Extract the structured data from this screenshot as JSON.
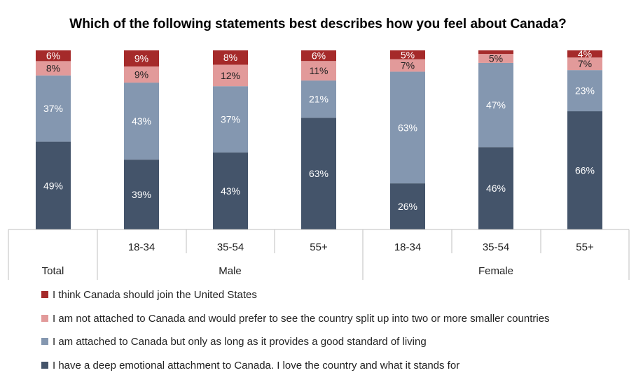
{
  "chart_data": {
    "type": "bar",
    "stacked": true,
    "title": "Which of the following statements best describes how you feel about Canada?",
    "categories": [
      "",
      "18-34",
      "35-54",
      "55+",
      "18-34",
      "35-54",
      "55+"
    ],
    "groups": [
      {
        "label": "Total",
        "span": [
          0,
          0
        ]
      },
      {
        "label": "Male",
        "span": [
          1,
          3
        ]
      },
      {
        "label": "Female",
        "span": [
          4,
          6
        ]
      }
    ],
    "series": [
      {
        "name": "I have a deep emotional attachment to Canada. I love the country and what it stands for",
        "color": "#44546a",
        "label_color": "#ffffff",
        "values": [
          49,
          39,
          43,
          63,
          26,
          46,
          66
        ]
      },
      {
        "name": "I am attached to Canada but only as long as it provides a good standard of living",
        "color": "#8497b0",
        "label_color": "#ffffff",
        "values": [
          37,
          43,
          37,
          21,
          63,
          47,
          23
        ]
      },
      {
        "name": "I am not attached to Canada and would prefer to see the country split up into two or more smaller countries",
        "color": "#e29a9a",
        "label_color": "#222222",
        "values": [
          8,
          9,
          12,
          11,
          7,
          5,
          7
        ]
      },
      {
        "name": "I think Canada should join the United States",
        "color": "#a52a2a",
        "label_color": "#ffffff",
        "values": [
          6,
          9,
          8,
          6,
          5,
          2,
          4
        ]
      }
    ],
    "data_labels": [
      [
        "49%",
        "39%",
        "43%",
        "63%",
        "26%",
        "46%",
        "66%"
      ],
      [
        "37%",
        "43%",
        "37%",
        "21%",
        "63%",
        "47%",
        "23%"
      ],
      [
        "8%",
        "9%",
        "12%",
        "11%",
        "7%",
        "5%",
        "7%"
      ],
      [
        "6%",
        "9%",
        "8%",
        "6%",
        "5%",
        "",
        "4%"
      ]
    ],
    "legend_order": [
      3,
      2,
      1,
      0
    ],
    "legend_position": "bottom",
    "ylim": [
      0,
      100
    ],
    "grid": false
  }
}
